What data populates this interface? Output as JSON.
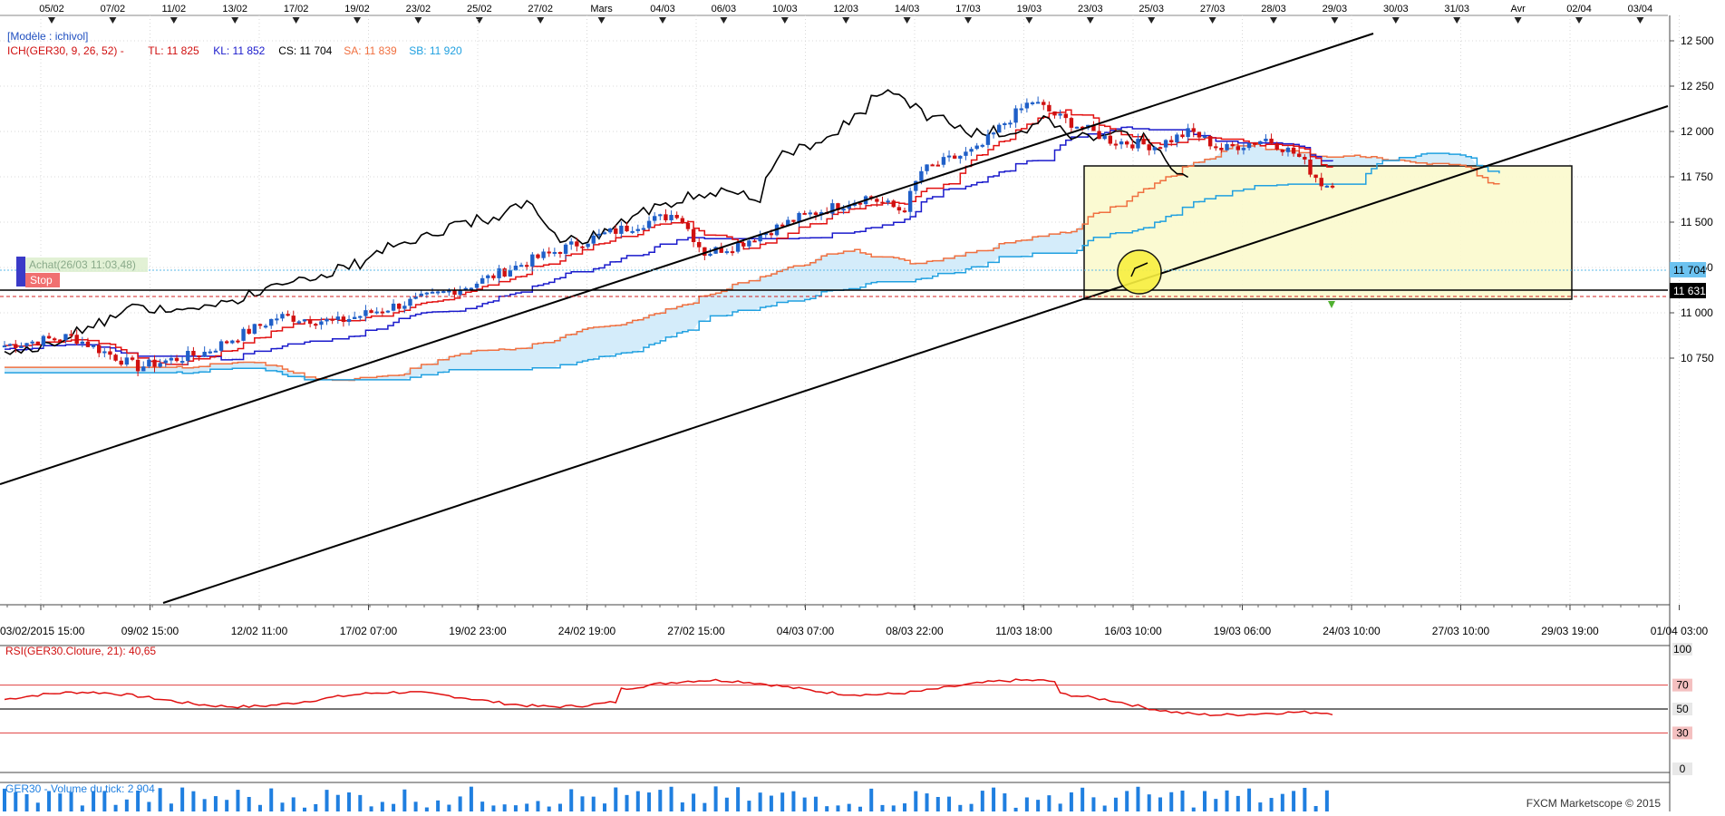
{
  "top_dates": [
    "05/02",
    "07/02",
    "11/02",
    "13/02",
    "17/02",
    "19/02",
    "23/02",
    "25/02",
    "27/02",
    "Mars",
    "04/03",
    "06/03",
    "10/03",
    "12/03",
    "14/03",
    "17/03",
    "19/03",
    "23/03",
    "25/03",
    "27/03",
    "28/03",
    "29/03",
    "30/03",
    "31/03",
    "Avr",
    "02/04",
    "03/04"
  ],
  "bottom_dates": [
    "03/02/2015 15:00",
    "09/02 15:00",
    "12/02 11:00",
    "17/02 07:00",
    "19/02 23:00",
    "24/02 19:00",
    "27/02 15:00",
    "04/03 07:00",
    "08/03 22:00",
    "11/03 18:00",
    "16/03 10:00",
    "19/03 06:00",
    "24/03 10:00",
    "27/03 10:00",
    "29/03 19:00",
    "01/04 03:00"
  ],
  "legend": {
    "model": "[Modèle : ichivol]",
    "ich": "ICH(GER30, 9, 26, 52) -",
    "tl": "TL: 11 825",
    "kl": "KL: 11 852",
    "cs": "CS: 11 704",
    "sa": "SA: 11 839",
    "sb": "SB: 11 920"
  },
  "order_labels": {
    "buy": "Achat(26/03 11:03,48)",
    "stop": "Stop"
  },
  "price_badges": {
    "current": "11 704",
    "line": "11 631"
  },
  "price_axis": [
    "12 500",
    "12 250",
    "12 000",
    "11 750",
    "11 500",
    "11 250",
    "11 000",
    "10 750"
  ],
  "rsi": {
    "label": "RSI(GER30.Cloture, 21): 40,65",
    "axis": [
      "100",
      "70",
      "50",
      "30",
      "0"
    ]
  },
  "volume": {
    "label": "GER30 - Volume du tick: 2 904"
  },
  "footer": "FXCM Marketscope © 2015",
  "colors": {
    "bg": "#ffffff",
    "grid": "#d8d8d8",
    "candle_up": "#1f5fc8",
    "candle_down": "#d01010",
    "tenkan": "#e21010",
    "kijun": "#1a1acc",
    "chikou": "#000000",
    "senkou_a": "#f07040",
    "senkou_b": "#20a0e0",
    "cloud_bull": "#d4ecfa",
    "cloud_bear": "#ffe3d3",
    "box": "#fbfad0",
    "rsi": "#e01010",
    "volume": "#1f7fe0"
  },
  "chart_data": {
    "type": "candlestick",
    "instrument": "GER30",
    "price_range": [
      10550,
      12600
    ],
    "annotations": [
      "yellow rectangle consolidation zone",
      "yellow circle marker",
      "ascending channel lines",
      "horizontal support 11 631"
    ]
  }
}
